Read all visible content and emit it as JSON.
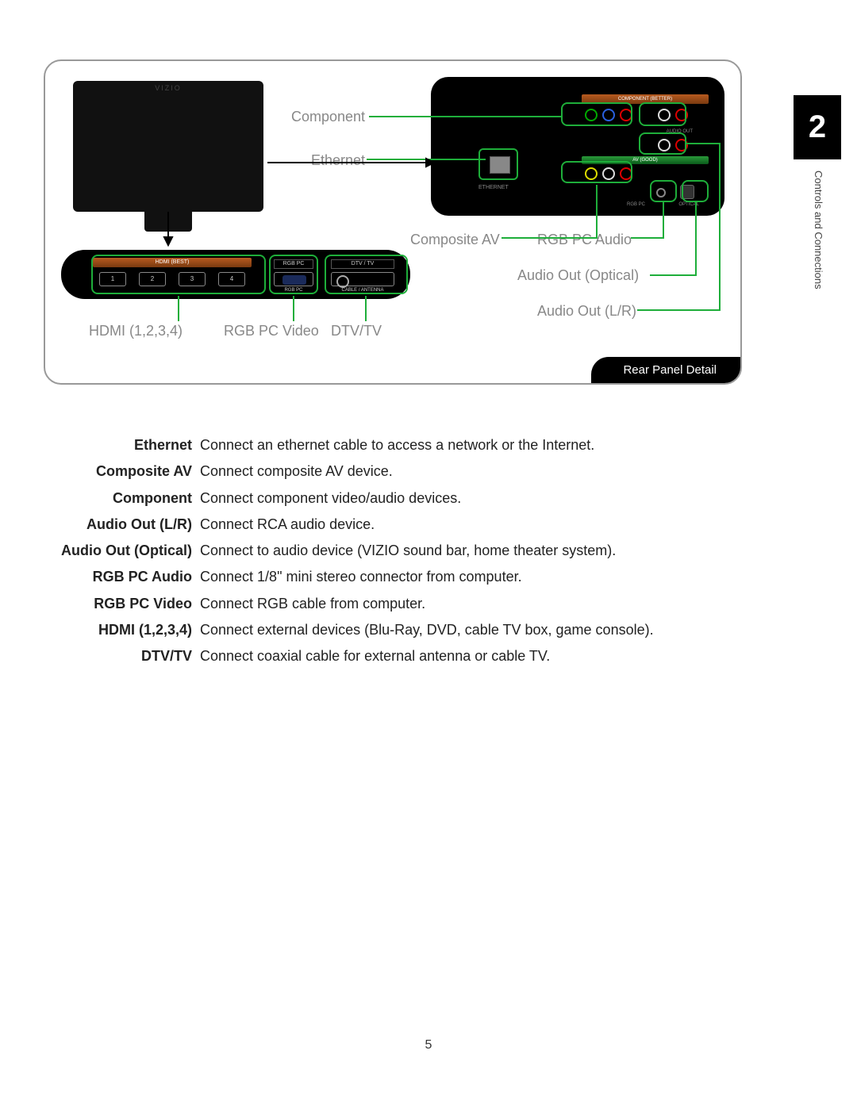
{
  "chapter": {
    "number": "2",
    "title": "Controls and Connections"
  },
  "page_number": "5",
  "figure": {
    "tag": "Rear Panel Detail",
    "tv_brand": "VIZIO",
    "strip": {
      "hdmi_band": "HDMI (BEST)",
      "hdmi_ports": [
        "1",
        "2",
        "3",
        "4"
      ],
      "rgb_label": "RGB PC",
      "dtv_label": "DTV / TV",
      "cable_label": "CABLE / ANTENNA"
    },
    "detail": {
      "component_band": "COMPONENT (BETTER)",
      "av_band": "AV (GOOD)",
      "ethernet_label": "ETHERNET",
      "audio_out_label": "AUDIO OUT",
      "rgb_audio_label": "RGB PC",
      "optical_label": "OPTICAL",
      "audio_lbl_small": "AUDIO"
    },
    "callouts": {
      "component": "Component",
      "ethernet": "Ethernet",
      "composite_av": "Composite AV",
      "rgb_pc_audio": "RGB PC Audio",
      "audio_out_optical": "Audio Out (Optical)",
      "audio_out_lr": "Audio Out (L/R)",
      "hdmi": "HDMI (1,2,3,4)",
      "rgb_pc_video": "RGB PC Video",
      "dtv_tv": "DTV/TV"
    },
    "colors": {
      "line": "#1eae3a",
      "accent_band": "#b85a1f",
      "panel_bg": "#000000",
      "border": "#999999",
      "callout_text": "#888888"
    }
  },
  "descriptions": [
    {
      "term": "Ethernet",
      "def": "Connect an ethernet cable to access a network or the Internet."
    },
    {
      "term": "Composite AV",
      "def": "Connect composite AV device."
    },
    {
      "term": "Component",
      "def": "Connect component video/audio devices."
    },
    {
      "term": "Audio Out (L/R)",
      "def": "Connect RCA audio device."
    },
    {
      "term": "Audio Out (Optical)",
      "def": "Connect to audio device (VIZIO sound bar, home theater system)."
    },
    {
      "term": "RGB PC Audio",
      "def": "Connect 1/8\" mini stereo connector from computer."
    },
    {
      "term": "RGB PC Video",
      "def": "Connect RGB cable from computer."
    },
    {
      "term": "HDMI (1,2,3,4)",
      "def": "Connect external devices (Blu-Ray, DVD, cable TV box, game console)."
    },
    {
      "term": "DTV/TV",
      "def": "Connect coaxial cable for external antenna or cable TV."
    }
  ]
}
